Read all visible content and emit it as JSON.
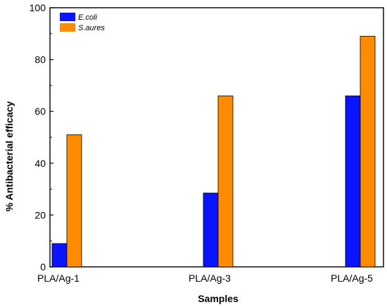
{
  "chart_data": {
    "type": "bar",
    "categories": [
      "PLA/Ag-1",
      "PLA/Ag-3",
      "PLA/Ag-5"
    ],
    "series": [
      {
        "name": "E.coli",
        "values": [
          9,
          28.5,
          66
        ],
        "color": "#0a14ff"
      },
      {
        "name": "S.aures",
        "values": [
          51,
          66,
          89
        ],
        "color": "#ff8c00"
      }
    ],
    "title": "",
    "xlabel": "Samples",
    "ylabel": "% Antibacterial efficacy",
    "ylim": [
      0,
      100
    ],
    "yticks": [
      "0",
      "20",
      "40",
      "60",
      "80",
      "100"
    ],
    "grid": false,
    "legend_position": "top-left"
  }
}
